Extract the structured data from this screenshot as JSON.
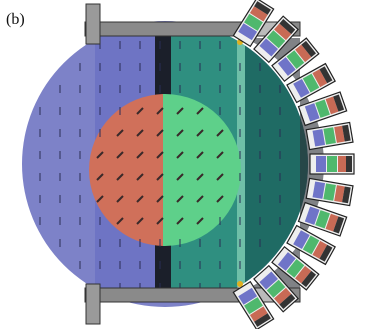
{
  "label": "(b)"
}
